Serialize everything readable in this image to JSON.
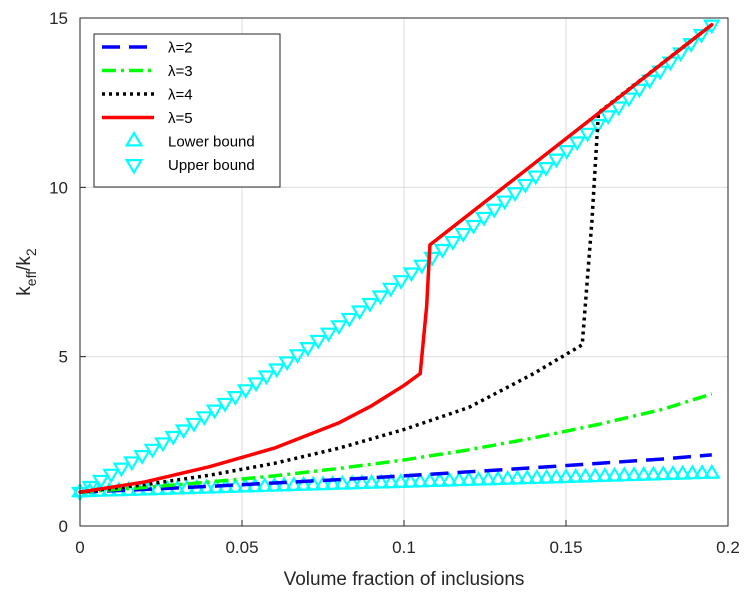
{
  "chart_data": {
    "type": "line",
    "title": "",
    "xlabel": "Volume fraction of inclusions",
    "ylabel_main": "k",
    "ylabel_sub1": "eff",
    "ylabel_mid": "/k",
    "ylabel_sub2": "2",
    "xlim": [
      0,
      0.2
    ],
    "ylim": [
      0,
      15
    ],
    "xticks": [
      0,
      0.05,
      0.1,
      0.15,
      0.2
    ],
    "xtick_labels": [
      "0",
      "0.05",
      "0.1",
      "0.15",
      "0.2"
    ],
    "yticks": [
      0,
      5,
      10,
      15
    ],
    "ytick_labels": [
      "0",
      "5",
      "10",
      "15"
    ],
    "grid": true,
    "legend_position": "top-left",
    "series": [
      {
        "name": "λ=2",
        "style": "dashed",
        "color": "#0000ff",
        "x": [
          0,
          0.02,
          0.04,
          0.06,
          0.08,
          0.1,
          0.12,
          0.14,
          0.16,
          0.18,
          0.195
        ],
        "y": [
          1.0,
          1.08,
          1.17,
          1.27,
          1.37,
          1.48,
          1.6,
          1.72,
          1.85,
          1.98,
          2.1
        ]
      },
      {
        "name": "λ=3",
        "style": "dashdot",
        "color": "#00ff00",
        "x": [
          0,
          0.02,
          0.04,
          0.06,
          0.08,
          0.1,
          0.12,
          0.14,
          0.16,
          0.18,
          0.195
        ],
        "y": [
          1.0,
          1.14,
          1.3,
          1.48,
          1.7,
          1.95,
          2.25,
          2.6,
          3.0,
          3.45,
          3.9
        ]
      },
      {
        "name": "λ=4",
        "style": "dotted",
        "color": "#000000",
        "x": [
          0,
          0.02,
          0.04,
          0.06,
          0.08,
          0.1,
          0.12,
          0.14,
          0.155,
          0.158,
          0.16,
          0.195
        ],
        "y": [
          1.0,
          1.22,
          1.5,
          1.85,
          2.3,
          2.85,
          3.5,
          4.5,
          5.35,
          9.0,
          12.2,
          14.8
        ]
      },
      {
        "name": "λ=5",
        "style": "solid",
        "color": "#ff0000",
        "x": [
          0,
          0.02,
          0.04,
          0.06,
          0.08,
          0.09,
          0.1,
          0.105,
          0.107,
          0.108,
          0.195
        ],
        "y": [
          1.0,
          1.3,
          1.75,
          2.3,
          3.05,
          3.55,
          4.15,
          4.5,
          6.5,
          8.3,
          14.8
        ]
      },
      {
        "name": "Lower bound",
        "style": "marker-up-triangle",
        "color": "#00ffff",
        "x": [
          0,
          0.195
        ],
        "y": [
          1.0,
          1.55
        ]
      },
      {
        "name": "Upper bound",
        "style": "marker-down-triangle",
        "color": "#00ffff",
        "x": [
          0,
          0.195
        ],
        "y": [
          1.0,
          14.8
        ]
      }
    ]
  }
}
